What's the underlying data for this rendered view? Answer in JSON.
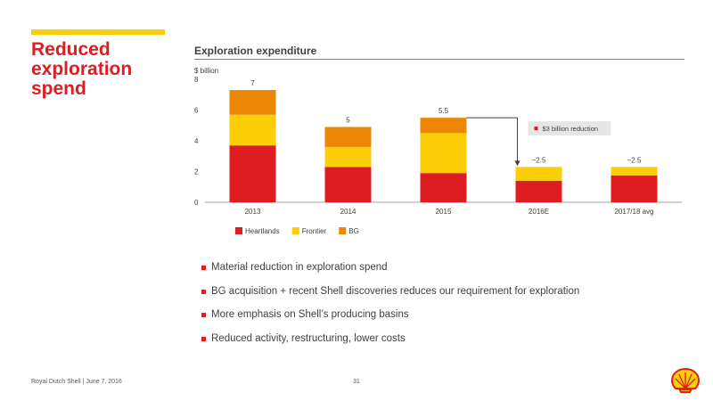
{
  "slide": {
    "title": "Reduced exploration spend",
    "footer": "Royal Dutch Shell | June 7, 2016",
    "page_number": "31"
  },
  "colors": {
    "accent_yellow": "#FBCE07",
    "heartlands_red": "#DD1D21",
    "frontier_yellow": "#FBCE07",
    "bg_orange": "#EB8705",
    "text_gray": "#404040"
  },
  "chart_data": {
    "type": "bar",
    "stacked": true,
    "title": "Exploration expenditure",
    "ylabel": "$ billion",
    "ylim": [
      0,
      8
    ],
    "yticks": [
      0,
      2,
      4,
      6,
      8
    ],
    "grid": false,
    "legend_position": "bottom-left",
    "categories": [
      "2013",
      "2014",
      "2015",
      "2016E",
      "2017/18 avg"
    ],
    "series": [
      {
        "name": "Heartlands",
        "color": "#DD1D21",
        "values": [
          3.7,
          2.3,
          1.9,
          1.4,
          1.75
        ]
      },
      {
        "name": "Frontier",
        "color": "#FBCE07",
        "values": [
          2.0,
          1.3,
          2.6,
          0.9,
          0.55
        ]
      },
      {
        "name": "BG",
        "color": "#EB8705",
        "values": [
          1.6,
          1.3,
          1.0,
          0,
          0
        ]
      }
    ],
    "total_labels": [
      "7",
      "5",
      "5.5",
      "~2.5",
      "~2.5"
    ],
    "annotation": {
      "text": "$3 billion reduction",
      "from_category": "2015",
      "to_category": "2016E"
    }
  },
  "bullets": [
    "Material reduction in exploration spend",
    "BG acquisition + recent Shell discoveries reduces our requirement for exploration",
    "More emphasis on Shell’s producing basins",
    "Reduced activity, restructuring, lower costs"
  ]
}
